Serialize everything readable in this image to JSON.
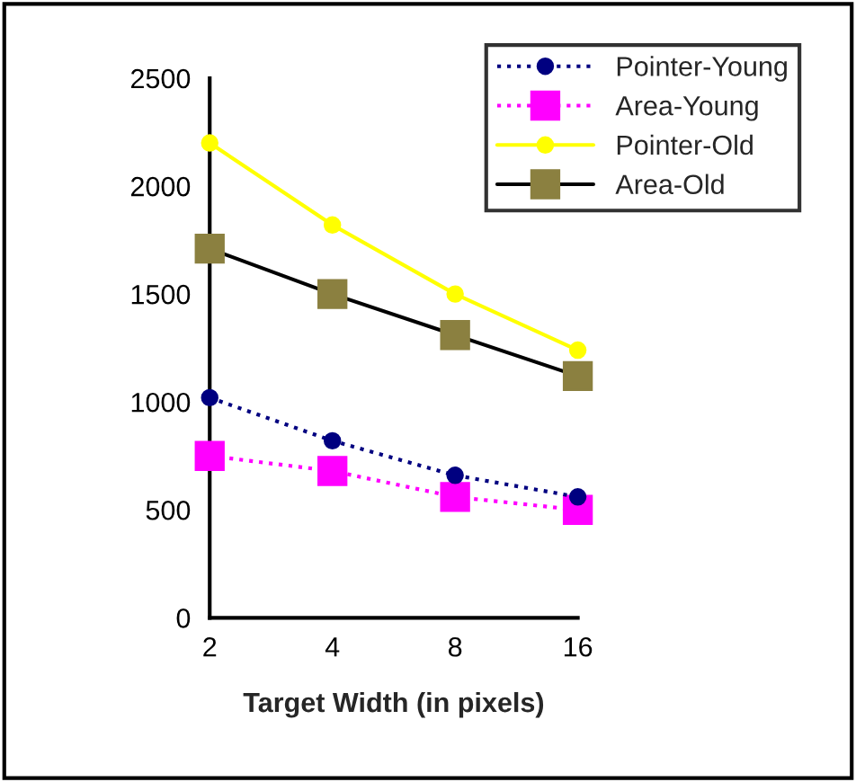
{
  "chart_data": {
    "type": "line",
    "xlabel": "Target Width (in pixels)",
    "categories": [
      "2",
      "4",
      "8",
      "16"
    ],
    "series": [
      {
        "name": "Pointer-Young",
        "color": "#000080",
        "values": [
          1020,
          820,
          660,
          560
        ],
        "marker": "circle",
        "line_style": "dotted"
      },
      {
        "name": "Area-Young",
        "color": "#ff00ff",
        "values": [
          750,
          680,
          560,
          500
        ],
        "marker": "square",
        "line_style": "dotted"
      },
      {
        "name": "Pointer-Old",
        "color": "#ffff00",
        "values": [
          2200,
          1820,
          1500,
          1240
        ],
        "marker": "circle",
        "line_style": "solid"
      },
      {
        "name": "Area-Old",
        "color": "#000000",
        "values": [
          1710,
          1500,
          1310,
          1120
        ],
        "marker": "square",
        "line_style": "solid"
      }
    ],
    "ylim": [
      0,
      2500
    ],
    "yticks": [
      0,
      500,
      1000,
      1500,
      2000,
      2500
    ],
    "grid": false,
    "legend": "top right"
  }
}
